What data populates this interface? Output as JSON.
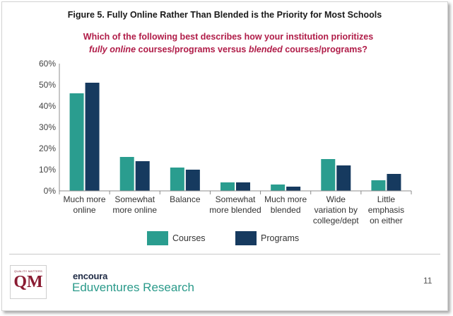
{
  "header": {
    "figure_title": "Figure 5. Fully Online Rather Than Blended is the Priority for Most Schools",
    "question_line1": "Which of the following best describes how your institution prioritizes",
    "question_line2_em1": "fully online",
    "question_line2_mid": " courses/programs versus ",
    "question_line2_em2": "blended",
    "question_line2_end": " courses/programs?"
  },
  "chart_data": {
    "type": "bar",
    "categories": [
      [
        "Much more",
        "online"
      ],
      [
        "Somewhat",
        "more online"
      ],
      [
        "Balance"
      ],
      [
        "Somewhat",
        "more blended"
      ],
      [
        "Much more",
        "blended"
      ],
      [
        "Wide",
        "variation by",
        "college/dept"
      ],
      [
        "Little",
        "emphasis",
        "on either"
      ]
    ],
    "series": [
      {
        "name": "Courses",
        "color": "#2a9d8f",
        "values": [
          46,
          16,
          11,
          4,
          3,
          15,
          5
        ]
      },
      {
        "name": "Programs",
        "color": "#163a5f",
        "values": [
          51,
          14,
          10,
          4,
          2,
          12,
          8
        ]
      }
    ],
    "ylim": [
      0,
      60
    ],
    "yticks": [
      "0%",
      "10%",
      "20%",
      "30%",
      "40%",
      "50%",
      "60%"
    ],
    "legend_position": "bottom",
    "grid": false
  },
  "footer": {
    "qm_logo_small": "QUALITY MATTERS",
    "qm_logo_big": "QM",
    "brand_top": "encoura",
    "brand_bottom": "Eduventures",
    "brand_suffix": " Research",
    "page_number": "11"
  }
}
